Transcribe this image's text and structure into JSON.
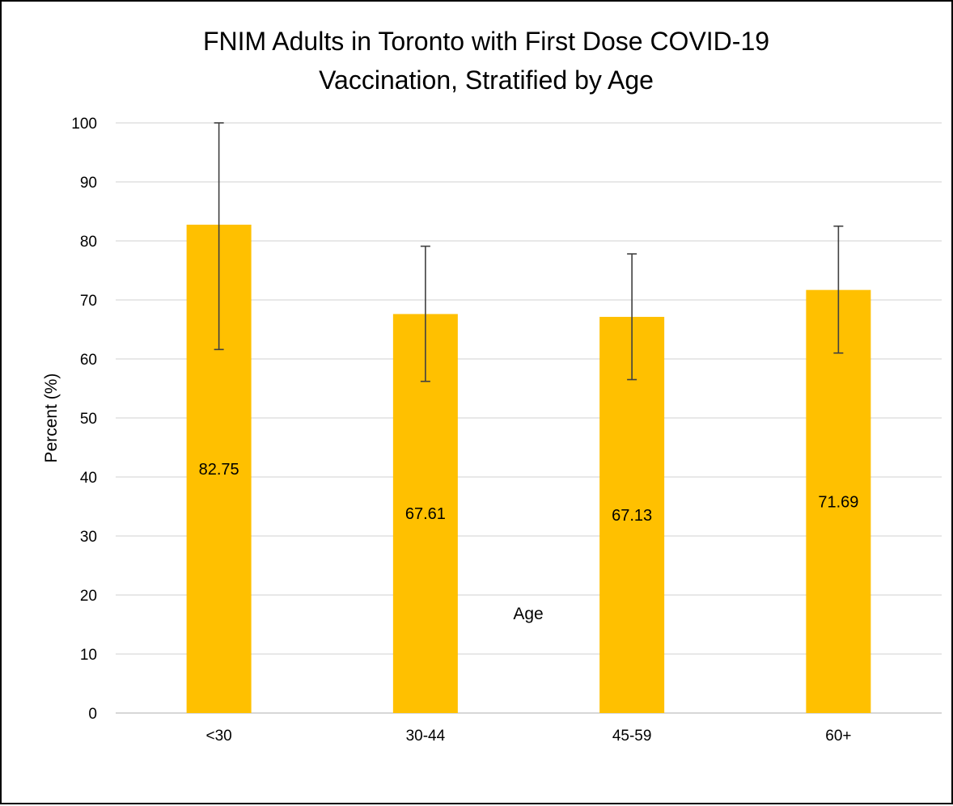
{
  "chart_data": {
    "type": "bar",
    "title_lines": [
      "FNIM Adults in Toronto with First Dose COVID-19",
      "Vaccination, Stratified by Age"
    ],
    "xlabel": "Age",
    "ylabel": "Percent (%)",
    "categories": [
      "<30",
      "30-44",
      "45-59",
      "60+"
    ],
    "values": [
      82.75,
      67.61,
      67.13,
      71.69
    ],
    "data_labels": [
      "82.75",
      "67.61",
      "67.13",
      "71.69"
    ],
    "error_bars": {
      "lower": [
        61.6,
        56.2,
        56.5,
        61.0
      ],
      "upper": [
        100,
        79.1,
        77.8,
        82.5
      ]
    },
    "ylim": [
      0,
      100
    ],
    "yticks": [
      0,
      10,
      20,
      30,
      40,
      50,
      60,
      70,
      80,
      90,
      100
    ],
    "ytick_labels": [
      "0",
      "10",
      "20",
      "30",
      "40",
      "50",
      "60",
      "70",
      "80",
      "90",
      "100"
    ],
    "grid": true,
    "legend": "none",
    "colors": {
      "bar": "#FFC000",
      "grid": "#D9D9D9",
      "axis": "#BFBFBF",
      "error_bar": "#404040"
    }
  }
}
